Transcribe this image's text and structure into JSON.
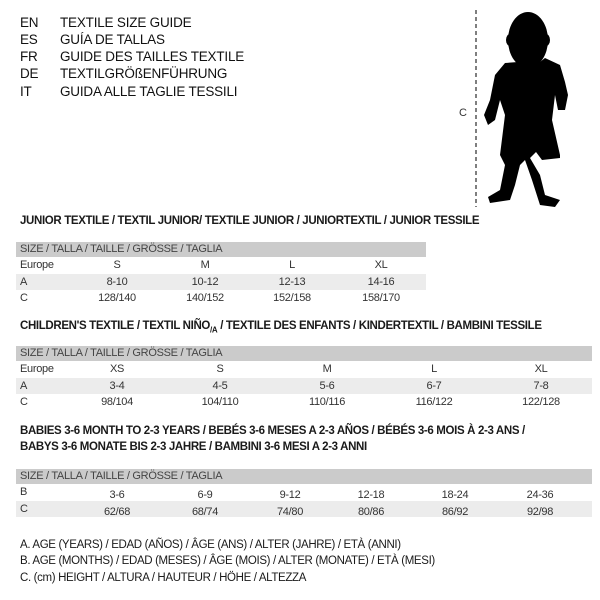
{
  "languages": [
    {
      "code": "EN",
      "title": "TEXTILE SIZE GUIDE"
    },
    {
      "code": "ES",
      "title": "GUÍA DE TALLAS"
    },
    {
      "code": "FR",
      "title": "GUIDE DES TAILLES TEXTILE"
    },
    {
      "code": "DE",
      "title": "TEXTILGRÖßENFÜHRUNG"
    },
    {
      "code": "IT",
      "title": "GUIDA ALLE TAGLIE TESSILI"
    }
  ],
  "figure": {
    "measure_label": "C"
  },
  "junior": {
    "title": "JUNIOR TEXTILE / TEXTIL JUNIOR/ TEXTILE JUNIOR / JUNIORTEXTIL / JUNIOR TESSILE",
    "header": "SIZE / TALLA / TAILLE / GRÖSSE / TAGLIA",
    "rows": [
      {
        "label": "Europe",
        "cells": [
          "S",
          "M",
          "L",
          "XL"
        ]
      },
      {
        "label": "A",
        "cells": [
          "8-10",
          "10-12",
          "12-13",
          "14-16"
        ]
      },
      {
        "label": "C",
        "cells": [
          "128/140",
          "140/152",
          "152/158",
          "158/170"
        ]
      }
    ]
  },
  "children": {
    "title_a": "CHILDREN'S TEXTILE / TEXTIL NIÑO",
    "title_sub": "/A",
    "title_b": " / TEXTILE DES ENFANTS / KINDERTEXTIL / BAMBINI TESSILE",
    "header": "SIZE / TALLA / TAILLE / GRÖSSE / TAGLIA",
    "rows": [
      {
        "label": "Europe",
        "cells": [
          "XS",
          "S",
          "M",
          "L",
          "XL"
        ]
      },
      {
        "label": "A",
        "cells": [
          "3-4",
          "4-5",
          "5-6",
          "6-7",
          "7-8"
        ]
      },
      {
        "label": "C",
        "cells": [
          "98/104",
          "104/110",
          "110/116",
          "116/122",
          "122/128"
        ]
      }
    ]
  },
  "babies": {
    "title_line1": "BABIES 3-6 MONTH TO 2-3 YEARS / BEBÉS 3-6 MESES A 2-3 AÑOS / BÉBÉS 3-6 MOIS À 2-3 ANS /",
    "title_line2": "BABYS 3-6 MONATE BIS 2-3 JAHRE / BAMBINI 3-6 MESI A 2-3 ANNI",
    "header": "SIZE / TALLA / TAILLE / GRÖSSE / TAGLIA",
    "rows": [
      {
        "label": "B",
        "cells": [
          "3-6",
          "6-9",
          "9-12",
          "12-18",
          "18-24",
          "24-36"
        ]
      },
      {
        "label": "C",
        "cells": [
          "62/68",
          "68/74",
          "74/80",
          "80/86",
          "86/92",
          "92/98"
        ]
      }
    ]
  },
  "legend": [
    "A. AGE (YEARS) / EDAD (AÑOS) / ÂGE (ANS) / ALTER (JAHRE) / ETÀ (ANNI)",
    "B. AGE (MONTHS) / EDAD (MESES) / ÂGE (MOIS) / ALTER (MONATE) / ETÀ (MESI)",
    "C. (cm) HEIGHT / ALTURA / HAUTEUR / HÖHE / ALTEZZA"
  ]
}
